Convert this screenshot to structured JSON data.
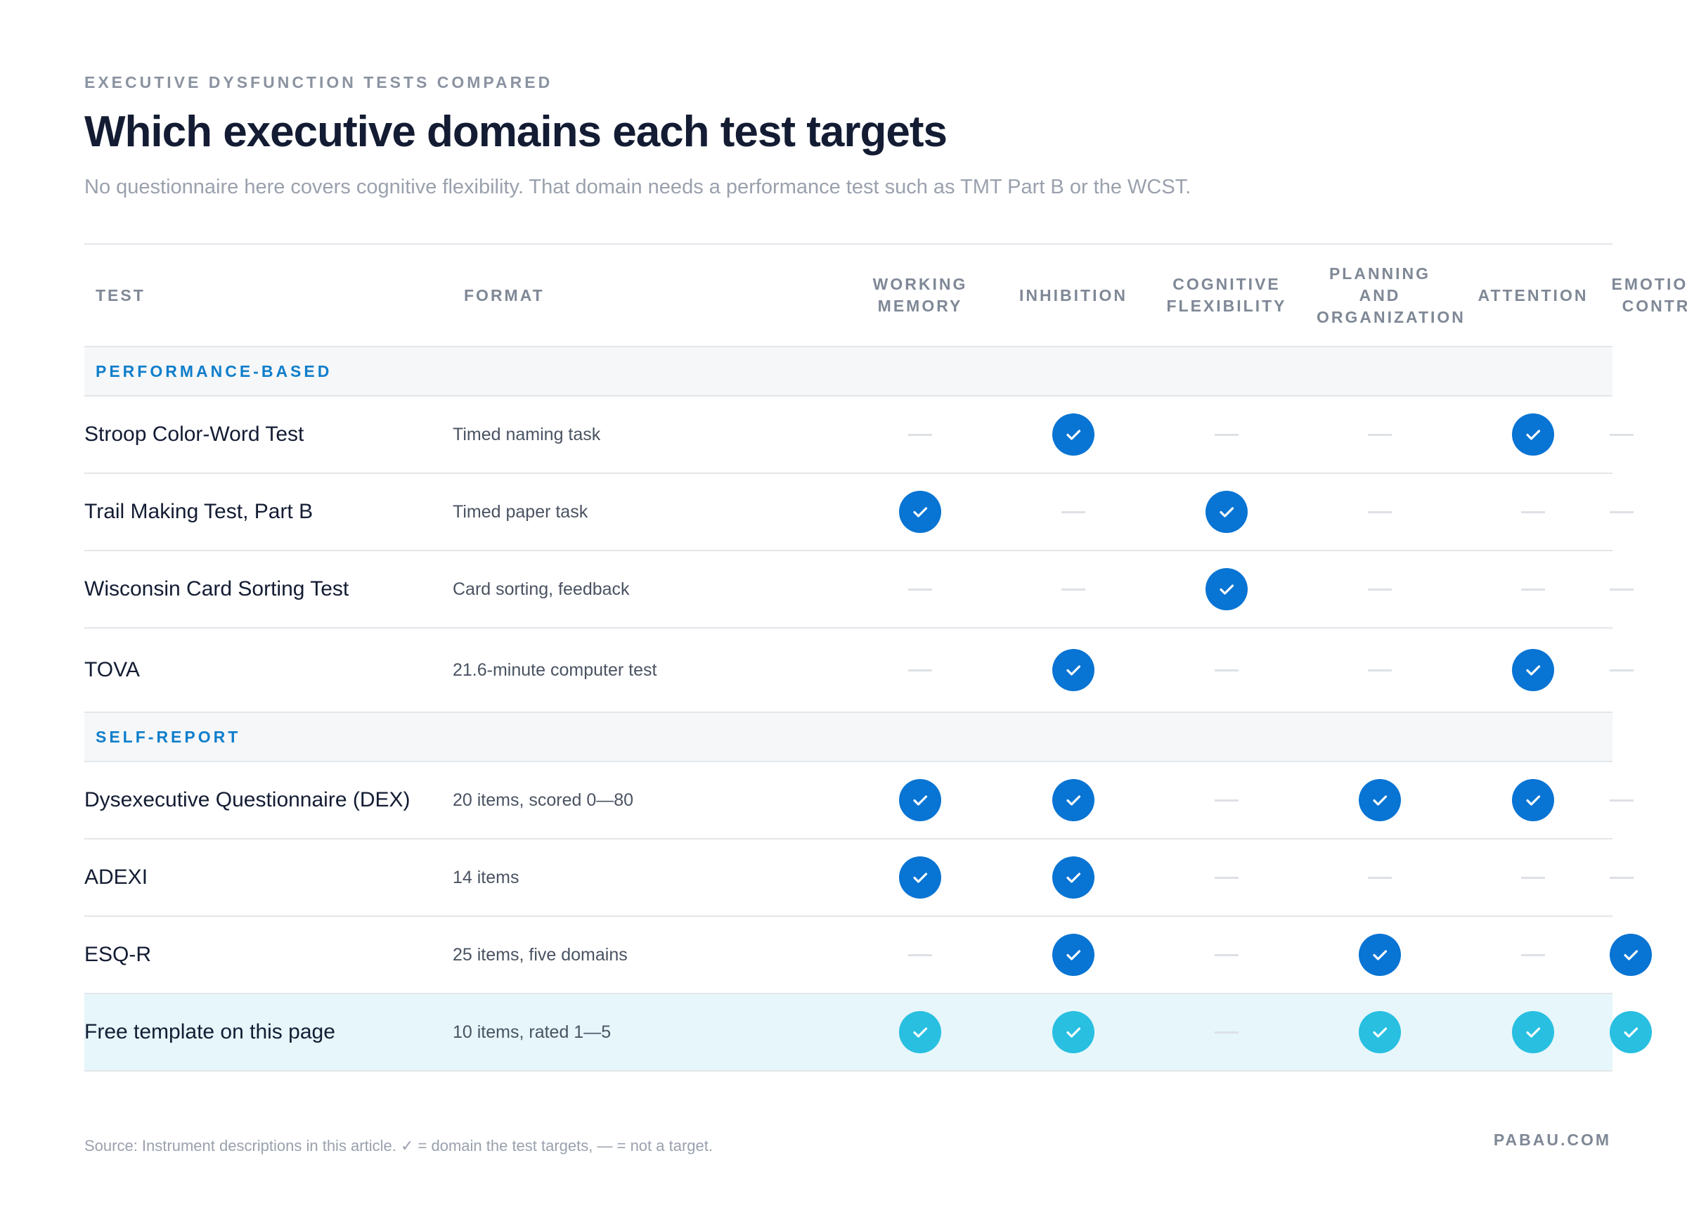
{
  "eyebrow": "EXECUTIVE DYSFUNCTION TESTS COMPARED",
  "title": "Which executive domains each test targets",
  "subtitle": "No questionnaire here covers cognitive flexibility. That domain needs a performance test such as TMT Part B or the WCST.",
  "columns": {
    "test": "TEST",
    "format": "FORMAT",
    "domains": [
      "WORKING MEMORY",
      "INHIBITION",
      "COGNITIVE FLEXIBILITY",
      "PLANNING AND ORGANIZATION",
      "ATTENTION",
      "EMOTIONAL CONTROL"
    ]
  },
  "groups": [
    {
      "label": "PERFORMANCE-BASED"
    },
    {
      "label": "SELF-REPORT"
    }
  ],
  "rows": [
    {
      "test": "Stroop Color-Word Test",
      "format": "Timed naming task"
    },
    {
      "test": "Trail Making Test, Part B",
      "format": "Timed paper task"
    },
    {
      "test": "Wisconsin Card Sorting Test",
      "format": "Card sorting, feedback"
    },
    {
      "test": "TOVA",
      "format": "21.6-minute computer test"
    },
    {
      "test": "Dysexecutive Questionnaire (DEX)",
      "format": "20 items, scored 0—80"
    },
    {
      "test": "ADEXI",
      "format": "14 items"
    },
    {
      "test": "ESQ-R",
      "format": "25 items, five domains"
    },
    {
      "test": "Free template on this page",
      "format": "10 items, rated 1—5"
    }
  ],
  "chart_data": {
    "type": "table",
    "columns": [
      "WORKING MEMORY",
      "INHIBITION",
      "COGNITIVE FLEXIBILITY",
      "PLANNING AND ORGANIZATION",
      "ATTENTION",
      "EMOTIONAL CONTROL"
    ],
    "rows": [
      {
        "group": "PERFORMANCE-BASED",
        "test": "Stroop Color-Word Test",
        "targets": [
          false,
          true,
          false,
          false,
          true,
          false
        ]
      },
      {
        "group": "PERFORMANCE-BASED",
        "test": "Trail Making Test, Part B",
        "targets": [
          true,
          false,
          true,
          false,
          false,
          false
        ]
      },
      {
        "group": "PERFORMANCE-BASED",
        "test": "Wisconsin Card Sorting Test",
        "targets": [
          false,
          false,
          true,
          false,
          false,
          false
        ]
      },
      {
        "group": "PERFORMANCE-BASED",
        "test": "TOVA",
        "targets": [
          false,
          true,
          false,
          false,
          true,
          false
        ]
      },
      {
        "group": "SELF-REPORT",
        "test": "Dysexecutive Questionnaire (DEX)",
        "targets": [
          true,
          true,
          false,
          true,
          true,
          false
        ]
      },
      {
        "group": "SELF-REPORT",
        "test": "ADEXI",
        "targets": [
          true,
          true,
          false,
          false,
          false,
          false
        ]
      },
      {
        "group": "SELF-REPORT",
        "test": "ESQ-R",
        "targets": [
          false,
          true,
          false,
          true,
          false,
          true
        ]
      },
      {
        "group": "SELF-REPORT",
        "test": "Free template on this page",
        "targets": [
          true,
          true,
          false,
          true,
          true,
          true
        ],
        "highlighted": true
      }
    ],
    "legend": {
      "check": "domain the test targets",
      "dash": "not a target"
    },
    "colors": {
      "check": "#0874d3",
      "check_highlight": "#28bfe1",
      "accent": "#0f7ecb",
      "highlight_row": "#e6f6fa"
    }
  },
  "footnote": "Source: Instrument descriptions in this article. ✓ = domain the test targets, — = not a target.",
  "brand": "PABAU.COM"
}
